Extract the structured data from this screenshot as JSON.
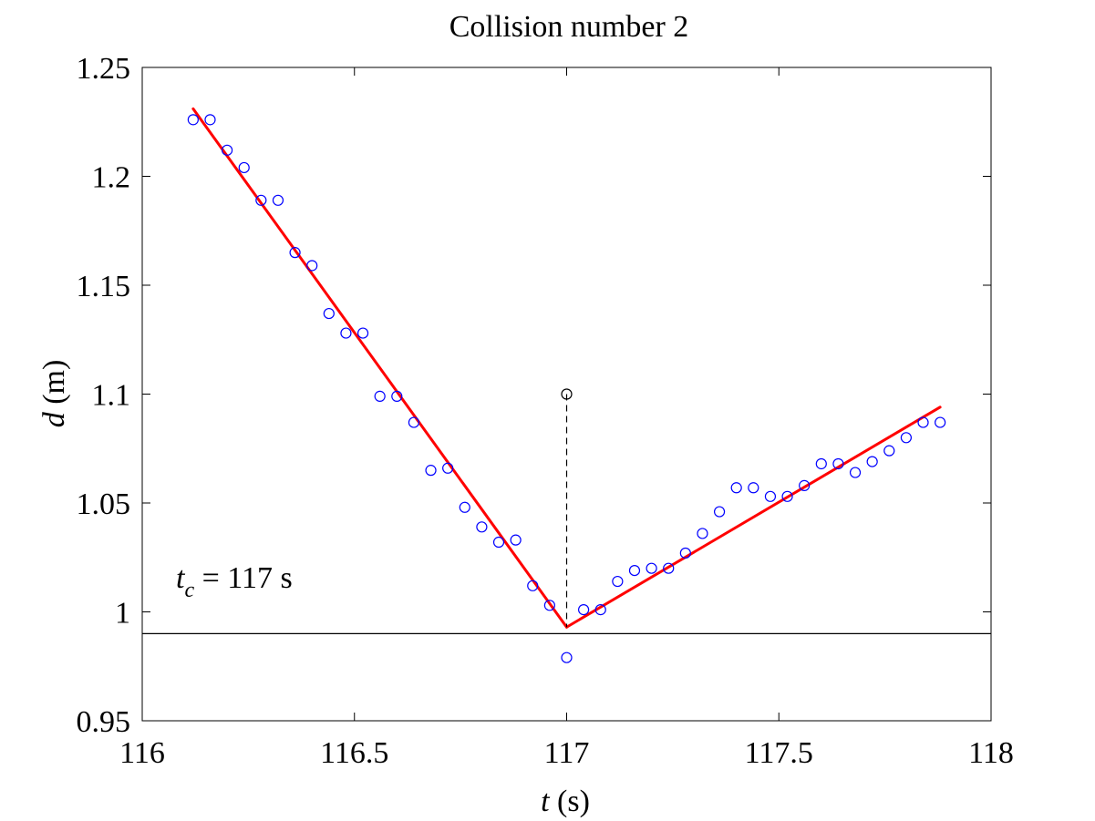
{
  "chart_data": {
    "type": "scatter",
    "title": "Collision number 2",
    "xlabel": {
      "var": "t",
      "unit": " (s)"
    },
    "ylabel": {
      "var": "d",
      "unit": " (m)"
    },
    "xlim": [
      116,
      118
    ],
    "ylim": [
      0.95,
      1.25
    ],
    "xticks": [
      116,
      116.5,
      117,
      117.5,
      118
    ],
    "xtick_labels": [
      "116",
      "116.5",
      "117",
      "117.5",
      "118"
    ],
    "yticks": [
      0.95,
      1.0,
      1.05,
      1.1,
      1.15,
      1.2,
      1.25
    ],
    "ytick_labels": [
      "0.95",
      "1",
      "1.05",
      "1.1",
      "1.15",
      "1.2",
      "1.25"
    ],
    "grid": false,
    "annotation": {
      "var": "t",
      "sub": "c",
      "rest": " = 117 s"
    },
    "points": {
      "x": [
        116.12,
        116.16,
        116.2,
        116.24,
        116.28,
        116.32,
        116.36,
        116.4,
        116.44,
        116.48,
        116.52,
        116.56,
        116.6,
        116.64,
        116.68,
        116.72,
        116.76,
        116.8,
        116.84,
        116.88,
        116.92,
        116.96,
        117.0,
        117.04,
        117.08,
        117.12,
        117.16,
        117.2,
        117.24,
        117.28,
        117.32,
        117.36,
        117.4,
        117.44,
        117.48,
        117.52,
        117.56,
        117.6,
        117.64,
        117.68,
        117.72,
        117.76,
        117.8,
        117.84,
        117.88
      ],
      "y": [
        1.226,
        1.226,
        1.212,
        1.204,
        1.189,
        1.189,
        1.165,
        1.159,
        1.137,
        1.128,
        1.128,
        1.099,
        1.099,
        1.087,
        1.065,
        1.066,
        1.048,
        1.039,
        1.032,
        1.033,
        1.012,
        1.003,
        0.979,
        1.001,
        1.001,
        1.014,
        1.019,
        1.02,
        1.02,
        1.027,
        1.036,
        1.046,
        1.057,
        1.057,
        1.053,
        1.053,
        1.058,
        1.068,
        1.068,
        1.064,
        1.069,
        1.074,
        1.08,
        1.087,
        1.087
      ],
      "color": "#0000ff"
    },
    "fit_lines": [
      {
        "x": [
          116.12,
          117.0
        ],
        "y": [
          1.231,
          0.993
        ],
        "color": "#ff0000"
      },
      {
        "x": [
          117.0,
          117.88
        ],
        "y": [
          0.993,
          1.094
        ],
        "color": "#ff0000"
      }
    ],
    "collision_marker": {
      "x": 117.0,
      "y": 1.1,
      "y0": 0.993,
      "color": "#000000"
    },
    "reference_line": {
      "y": 0.99,
      "color": "#000000"
    }
  }
}
